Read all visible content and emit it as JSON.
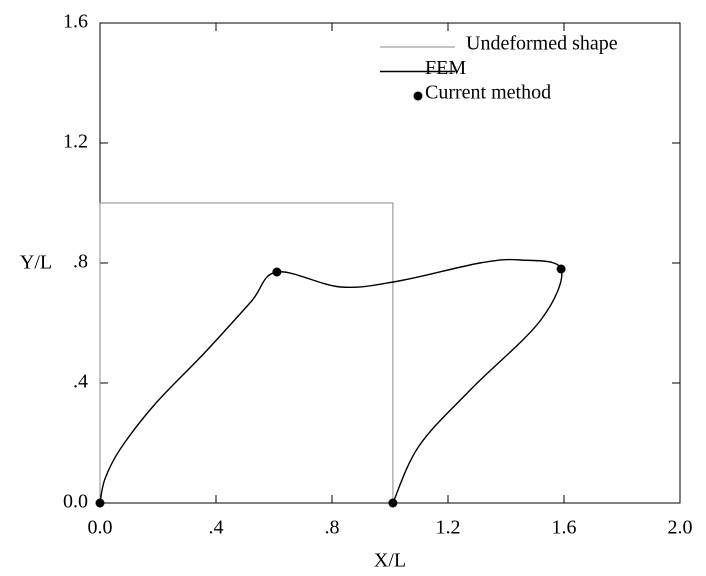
{
  "chart_data": {
    "type": "line",
    "x_label": "X/L",
    "y_label": "Y/L",
    "xlim": [
      0,
      2
    ],
    "ylim": [
      0,
      1.6
    ],
    "xticks": [
      {
        "value": 0,
        "label": "0.0"
      },
      {
        "value": 0.4,
        "label": ".4"
      },
      {
        "value": 0.8,
        "label": ".8"
      },
      1.2,
      1.6,
      {
        "value": 2,
        "label": "2.0"
      }
    ],
    "yticks": [
      {
        "value": 0,
        "label": "0.0"
      },
      {
        "value": 0.4,
        "label": ".4"
      },
      {
        "value": 0.8,
        "label": ".8"
      },
      1.2,
      1.6
    ],
    "legend": "top-right",
    "series": [
      {
        "name": "Undeformed shape",
        "color": "#888888",
        "mode": "lines",
        "x": [
          0,
          0,
          1.01,
          1.01
        ],
        "values": [
          0,
          1,
          1,
          0
        ]
      },
      {
        "name": "FEM",
        "color": "#000000",
        "mode": "lines",
        "x": [
          0,
          0.017,
          0.07,
          0.19,
          0.36,
          0.52,
          0.61,
          0.83,
          1.03,
          1.31,
          1.45,
          1.59,
          1.52,
          1.28,
          1.1,
          1.01
        ],
        "values": [
          0,
          0.08,
          0.18,
          0.33,
          0.5,
          0.67,
          0.77,
          0.72,
          0.74,
          0.8,
          0.81,
          0.78,
          0.61,
          0.38,
          0.19,
          0
        ]
      },
      {
        "name": "Current method",
        "color": "#000000",
        "mode": "markers",
        "x": [
          0,
          0.61,
          1.01,
          1.59
        ],
        "values": [
          0,
          0.77,
          0,
          0.78
        ]
      }
    ]
  }
}
